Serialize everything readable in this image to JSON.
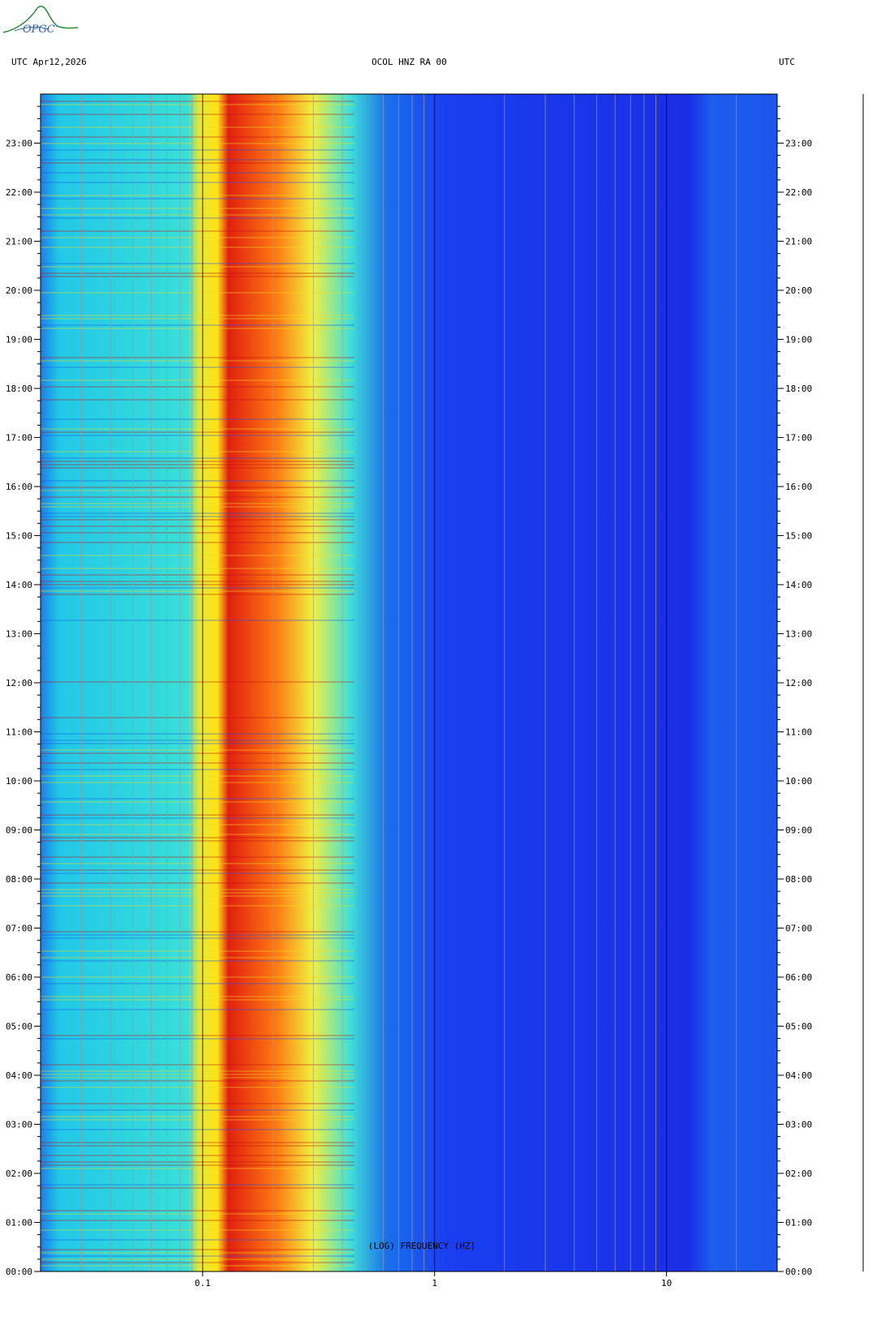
{
  "header": {
    "left": "UTC  Apr12,2026",
    "center": "OCOL HNZ RA 00",
    "right": "UTC"
  },
  "logo": {
    "text": "OPGC"
  },
  "colors": {
    "low": "#1830e6",
    "mid": "#22d8e8",
    "high": "#ffe21a",
    "peak": "#c00000",
    "grid": "#9a9a9a"
  },
  "chart_data": {
    "type": "heatmap",
    "xlabel": "(LOG) FREQUENCY (HZ)",
    "x_scale": "log",
    "xlim": [
      0.02,
      30
    ],
    "x_ticks": [
      {
        "value": 0.1,
        "label": "0.1"
      },
      {
        "value": 1,
        "label": "1"
      },
      {
        "value": 10,
        "label": "10"
      }
    ],
    "ylim_hours": [
      0,
      24
    ],
    "y_ticks": [
      "00:00",
      "01:00",
      "02:00",
      "03:00",
      "04:00",
      "05:00",
      "06:00",
      "07:00",
      "08:00",
      "09:00",
      "10:00",
      "11:00",
      "12:00",
      "13:00",
      "14:00",
      "15:00",
      "16:00",
      "17:00",
      "18:00",
      "19:00",
      "20:00",
      "21:00",
      "22:00",
      "23:00"
    ],
    "spectral_bands": [
      {
        "from_hz": 0.02,
        "to_hz": 0.025,
        "level": "mid"
      },
      {
        "from_hz": 0.025,
        "to_hz": 0.1,
        "level": "mid-high"
      },
      {
        "from_hz": 0.1,
        "to_hz": 0.125,
        "level": "high"
      },
      {
        "from_hz": 0.125,
        "to_hz": 0.2,
        "level": "peak"
      },
      {
        "from_hz": 0.2,
        "to_hz": 0.33,
        "level": "high"
      },
      {
        "from_hz": 0.33,
        "to_hz": 0.6,
        "level": "mid"
      },
      {
        "from_hz": 0.6,
        "to_hz": 30,
        "level": "low"
      }
    ],
    "grid": true
  }
}
